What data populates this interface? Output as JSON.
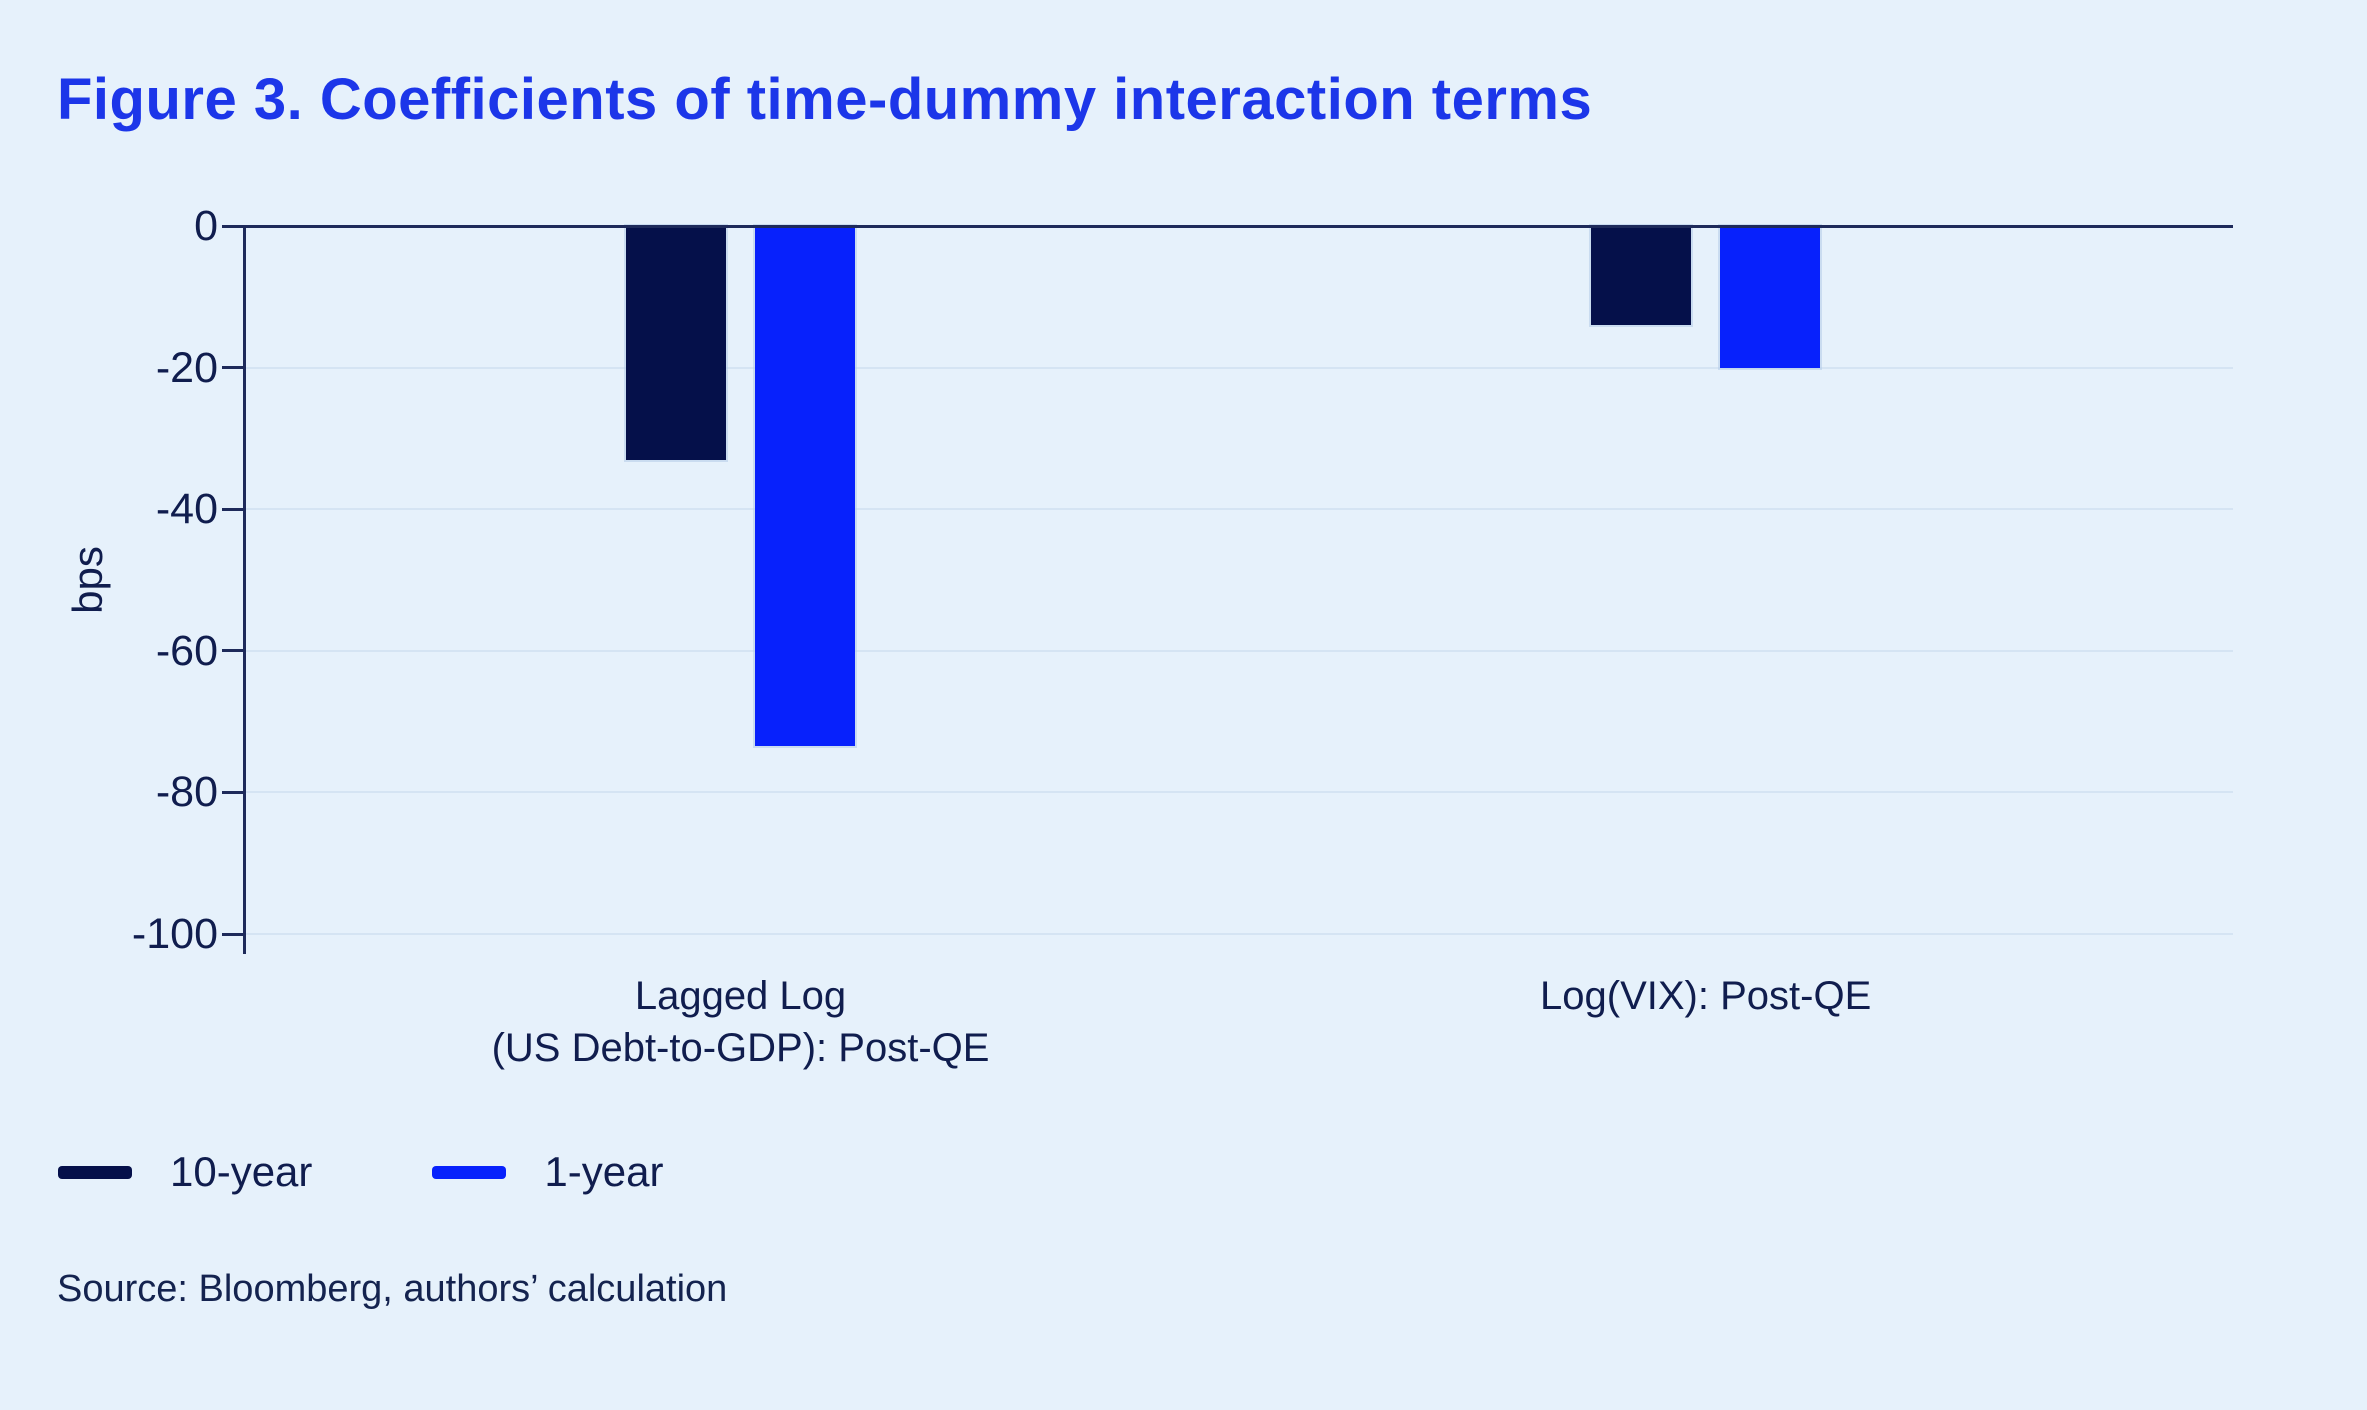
{
  "title": "Figure 3. Coefficients of time-dummy interaction terms",
  "source": "Source: Bloomberg, authors’ calculation",
  "colors": {
    "background": "#e6f1fb",
    "title_text": "#1c36e9",
    "axis_text": "#101d4e",
    "axis_line": "#1e2a5a",
    "gridline": "#d5e4f3",
    "series_10_year": "#05104a",
    "series_1_year": "#0721fc"
  },
  "legend": [
    {
      "label": "10-year",
      "color": "#05104a"
    },
    {
      "label": "1-year",
      "color": "#0721fc"
    }
  ],
  "chart_data": {
    "type": "bar",
    "title": "Figure 3. Coefficients of time-dummy interaction terms",
    "categories": [
      "Lagged Log\n(US Debt-to-GDP): Post-QE",
      "Log(VIX): Post-QE"
    ],
    "series": [
      {
        "name": "10-year",
        "color": "#05104a",
        "values": [
          -33,
          -14
        ]
      },
      {
        "name": "1-year",
        "color": "#0721fc",
        "values": [
          -73.5,
          -20
        ]
      }
    ],
    "xlabel": "",
    "ylabel": "bps",
    "ylim": [
      -100,
      0
    ],
    "yticks": [
      0,
      -20,
      -40,
      -60,
      -80,
      -100
    ],
    "grid": true,
    "legend_position": "bottom-left"
  }
}
